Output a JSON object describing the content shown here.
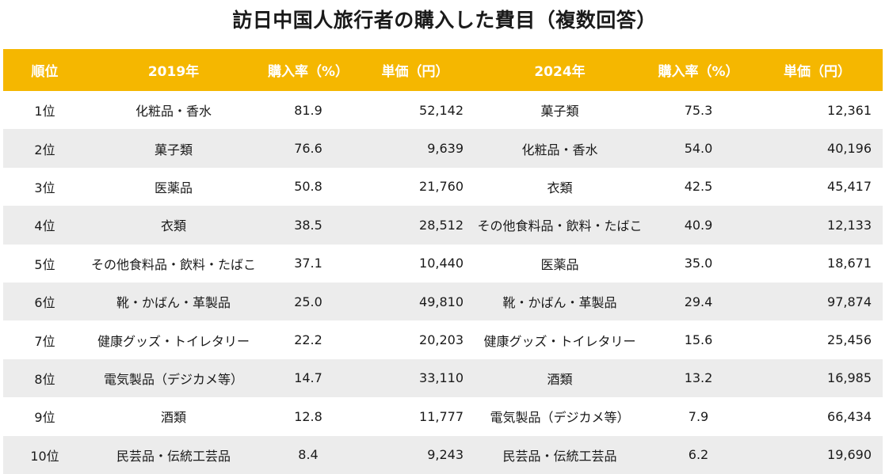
{
  "title": "訪日中国人旅行者の購入した費目（複数回答）",
  "headers": {
    "rank": "順位",
    "year_2019": "2019年",
    "rate_2019": "購入率（%）",
    "price_2019": "単価（円）",
    "year_2024": "2024年",
    "rate_2024": "購入率（%）",
    "price_2024": "単価（円）"
  },
  "rows": [
    {
      "rank": "1位",
      "item_2019": "化粧品・香水",
      "rate_2019": "81.9",
      "price_2019": "52,142",
      "item_2024": "菓子類",
      "rate_2024": "75.3",
      "price_2024": "12,361"
    },
    {
      "rank": "2位",
      "item_2019": "菓子類",
      "rate_2019": "76.6",
      "price_2019": "9,639",
      "item_2024": "化粧品・香水",
      "rate_2024": "54.0",
      "price_2024": "40,196"
    },
    {
      "rank": "3位",
      "item_2019": "医薬品",
      "rate_2019": "50.8",
      "price_2019": "21,760",
      "item_2024": "衣類",
      "rate_2024": "42.5",
      "price_2024": "45,417"
    },
    {
      "rank": "4位",
      "item_2019": "衣類",
      "rate_2019": "38.5",
      "price_2019": "28,512",
      "item_2024": "その他食料品・飲料・たばこ",
      "rate_2024": "40.9",
      "price_2024": "12,133"
    },
    {
      "rank": "5位",
      "item_2019": "その他食料品・飲料・たばこ",
      "rate_2019": "37.1",
      "price_2019": "10,440",
      "item_2024": "医薬品",
      "rate_2024": "35.0",
      "price_2024": "18,671"
    },
    {
      "rank": "6位",
      "item_2019": "靴・かばん・革製品",
      "rate_2019": "25.0",
      "price_2019": "49,810",
      "item_2024": "靴・かばん・革製品",
      "rate_2024": "29.4",
      "price_2024": "97,874"
    },
    {
      "rank": "7位",
      "item_2019": "健康グッズ・トイレタリー",
      "rate_2019": "22.2",
      "price_2019": "20,203",
      "item_2024": "健康グッズ・トイレタリー",
      "rate_2024": "15.6",
      "price_2024": "25,456"
    },
    {
      "rank": "8位",
      "item_2019": "電気製品（デジカメ等）",
      "rate_2019": "14.7",
      "price_2019": "33,110",
      "item_2024": "酒類",
      "rate_2024": "13.2",
      "price_2024": "16,985"
    },
    {
      "rank": "9位",
      "item_2019": "酒類",
      "rate_2019": "12.8",
      "price_2019": "11,777",
      "item_2024": "電気製品（デジカメ等）",
      "rate_2024": "7.9",
      "price_2024": "66,434"
    },
    {
      "rank": "10位",
      "item_2019": "民芸品・伝統工芸品",
      "rate_2019": "8.4",
      "price_2019": "9,243",
      "item_2024": "民芸品・伝統工芸品",
      "rate_2024": "6.2",
      "price_2024": "19,690"
    }
  ],
  "colors": {
    "header_bg": "#f5b700",
    "header_text": "#ffffff",
    "stripe": "#ececec"
  }
}
